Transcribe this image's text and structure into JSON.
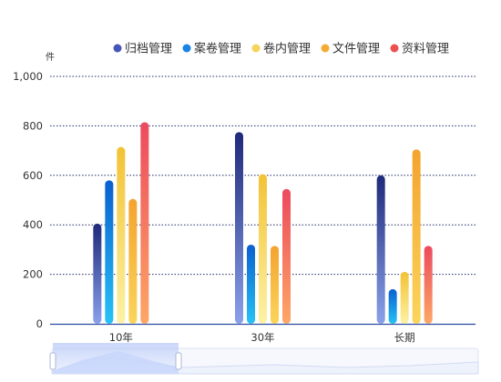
{
  "chart_data": {
    "type": "bar",
    "unit_label": "件",
    "categories": [
      "10年",
      "30年",
      "长期"
    ],
    "series": [
      {
        "name": "归档管理",
        "values": [
          405,
          775,
          600
        ]
      },
      {
        "name": "案卷管理",
        "values": [
          580,
          320,
          140
        ]
      },
      {
        "name": "卷内管理",
        "values": [
          715,
          605,
          210
        ]
      },
      {
        "name": "文件管理",
        "values": [
          505,
          315,
          705
        ]
      },
      {
        "name": "资料管理",
        "values": [
          815,
          545,
          315
        ]
      }
    ],
    "ylim": [
      0,
      1000
    ],
    "yticks": [
      "0",
      "200",
      "400",
      "600",
      "800",
      "1,000"
    ],
    "grid": true,
    "legend": "top-center",
    "colors": {
      "归档管理": [
        "#1f2a7a",
        "#8aa1ea"
      ],
      "案卷管理": [
        "#0a5fd0",
        "#27c3f5"
      ],
      "卷内管理": [
        "#f2c234",
        "#fdf2a6"
      ],
      "文件管理": [
        "#f4a32f",
        "#fbd55a"
      ],
      "资料管理": [
        "#ec4a5e",
        "#fda766"
      ]
    },
    "legend_dot_colors": {
      "归档管理": "#4656b8",
      "案卷管理": "#1a84e6",
      "卷内管理": "#f6d35a",
      "文件管理": "#f5ab32",
      "资料管理": "#ec5050"
    },
    "axis_color": "#2a4aa0",
    "grid_color": "#1f2a66",
    "text_color": "#333333"
  }
}
